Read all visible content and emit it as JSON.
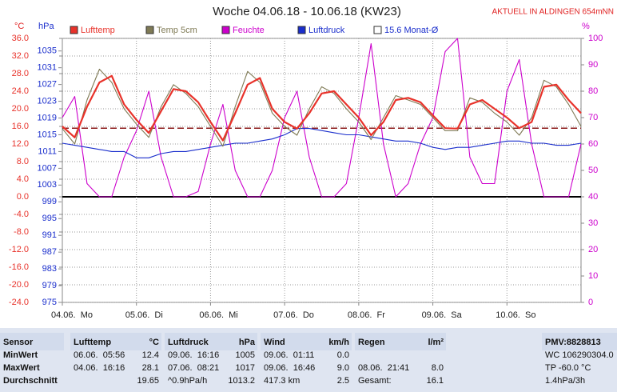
{
  "chart_data": {
    "type": "line",
    "title": "Woche 04.06.18 - 10.06.18 (KW23)",
    "subtitle": "AKTUELL IN ALDINGEN 654mNN",
    "ylabel": "°C",
    "y3label": "hPa",
    "y2label": "%",
    "legend": "top",
    "grid": true,
    "x": [
      0,
      4,
      8,
      12,
      16,
      20,
      24,
      28,
      32,
      36,
      40,
      44,
      48,
      52,
      56,
      60,
      64,
      68,
      72,
      76,
      80,
      84,
      88,
      92,
      96,
      100,
      104,
      108,
      112,
      116,
      120,
      124,
      128,
      132,
      136,
      140,
      144,
      148,
      152,
      156,
      160,
      164,
      168
    ],
    "xlim": [
      0,
      168
    ],
    "xticks": [
      {
        "value": 0,
        "label": "04.06.  Mo"
      },
      {
        "value": 24,
        "label": "05.06.  Di"
      },
      {
        "value": 48,
        "label": "06.06.  Mi"
      },
      {
        "value": 72,
        "label": "07.06.  Do"
      },
      {
        "value": 96,
        "label": "08.06.  Fr"
      },
      {
        "value": 120,
        "label": "09.06.  Sa"
      },
      {
        "value": 144,
        "label": "10.06.  So"
      }
    ],
    "ylim": [
      -24,
      36
    ],
    "yticks": [
      {
        "value": 36,
        "label": "36.0"
      },
      {
        "value": 32,
        "label": "32.0"
      },
      {
        "value": 28,
        "label": "28.0"
      },
      {
        "value": 24,
        "label": "24.0"
      },
      {
        "value": 20,
        "label": "20.0"
      },
      {
        "value": 16,
        "label": "16.0"
      },
      {
        "value": 12,
        "label": "12.0"
      },
      {
        "value": 8,
        "label": "8.0"
      },
      {
        "value": 4,
        "label": "4.0"
      },
      {
        "value": 0,
        "label": "0.0"
      },
      {
        "value": -4,
        "label": "-4.0"
      },
      {
        "value": -8,
        "label": "-8.0"
      },
      {
        "value": -12,
        "label": "-12.0"
      },
      {
        "value": -16,
        "label": "-16.0"
      },
      {
        "value": -20,
        "label": "-20.0"
      },
      {
        "value": -24,
        "label": "-24.0"
      }
    ],
    "y3lim": [
      975,
      1038
    ],
    "y3ticks": [
      1035,
      1031,
      1027,
      1023,
      1019,
      1015,
      1011,
      1007,
      1003,
      999,
      995,
      991,
      987,
      983,
      979,
      975
    ],
    "y2lim": [
      0,
      100
    ],
    "y2ticks": [
      100,
      90,
      80,
      70,
      60,
      50,
      40,
      30,
      20,
      10,
      0
    ],
    "series": [
      {
        "name": "Lufttemp",
        "color": "#e8322a",
        "axis": "y",
        "values": [
          16.0,
          13.5,
          20.5,
          26.0,
          27.5,
          21.0,
          17.5,
          14.5,
          19.5,
          24.5,
          24.0,
          21.5,
          17.0,
          12.8,
          19.0,
          25.5,
          27.0,
          20.0,
          17.0,
          15.5,
          19.0,
          23.5,
          24.0,
          21.0,
          18.0,
          14.0,
          17.0,
          22.0,
          22.5,
          21.5,
          18.5,
          15.6,
          15.5,
          21.0,
          22.0,
          20.0,
          18.0,
          15.6,
          17.0,
          25.0,
          25.5,
          22.0,
          19.0
        ]
      },
      {
        "name": "Temp 5cm",
        "color": "#7f7a55",
        "axis": "y",
        "values": [
          15.5,
          12.0,
          22.0,
          29.0,
          26.0,
          20.0,
          16.5,
          13.5,
          20.5,
          25.5,
          23.5,
          20.5,
          16.0,
          11.5,
          20.5,
          28.5,
          26.0,
          19.0,
          16.0,
          14.0,
          20.0,
          25.0,
          23.5,
          20.0,
          17.0,
          13.0,
          18.0,
          23.0,
          22.0,
          21.0,
          18.0,
          15.0,
          15.0,
          22.5,
          21.5,
          19.0,
          17.0,
          14.0,
          18.0,
          26.5,
          25.0,
          21.0,
          16.0
        ]
      },
      {
        "name": "Feuchte",
        "color": "#cc00cc",
        "axis": "y2",
        "values": [
          70,
          78,
          45,
          40,
          40,
          55,
          65,
          80,
          55,
          40,
          40,
          42,
          60,
          75,
          50,
          40,
          40,
          50,
          70,
          80,
          55,
          40,
          40,
          45,
          70,
          98,
          60,
          40,
          45,
          60,
          70,
          95,
          100,
          55,
          45,
          45,
          80,
          92,
          60,
          40,
          40,
          40,
          60
        ]
      },
      {
        "name": "Luftdruck",
        "color": "#1a2ecc",
        "axis": "y3",
        "values": [
          1013,
          1012.5,
          1012,
          1011.5,
          1011,
          1011,
          1009.5,
          1009.5,
          1010.5,
          1011,
          1011,
          1011.5,
          1012,
          1012.5,
          1013,
          1013,
          1013.5,
          1014,
          1015,
          1016.5,
          1016.5,
          1016,
          1015.5,
          1015,
          1015,
          1014.5,
          1014,
          1013.5,
          1013.5,
          1013,
          1012,
          1011.5,
          1012,
          1012,
          1012.5,
          1013,
          1013.5,
          1013.5,
          1013,
          1013,
          1012.5,
          1012.5,
          1013
        ]
      }
    ],
    "reference_line": {
      "name": "15.6 Monat-Ø",
      "value": 15.6,
      "color": "#8b1a1a",
      "axis": "y"
    }
  },
  "table": {
    "columns": [
      {
        "header": "Sensor",
        "rows": [
          {
            "left": "MinWert"
          },
          {
            "left": "MaxWert"
          },
          {
            "left": "Durchschnitt"
          }
        ]
      },
      {
        "header": "Lufttemp",
        "unit": "°C",
        "rows": [
          {
            "left": "06.06.  05:56",
            "value": "12.4"
          },
          {
            "left": "04.06.  16:16",
            "value": "28.1"
          },
          {
            "value": "19.65"
          }
        ]
      },
      {
        "header": "Luftdruck",
        "unit": "hPa",
        "rows": [
          {
            "left": "09.06.  16:16",
            "value": "1005"
          },
          {
            "left": "07.06.  08:21",
            "value": "1017"
          },
          {
            "left": "^0.9hPa/h",
            "value": "1013.2"
          }
        ]
      },
      {
        "header": "Wind",
        "unit": "km/h",
        "rows": [
          {
            "left": "09.06.  01:11",
            "value": "0.0"
          },
          {
            "left": "09.06.  16:46",
            "value": "9.0"
          },
          {
            "left": "417.3 km",
            "value": "2.5"
          }
        ]
      },
      {
        "header": "Regen",
        "unit": "l/m²",
        "rows": [
          null,
          {
            "left": "08.06.  21:41",
            "value": "8.0"
          },
          {
            "left": "Gesamt:",
            "value": "16.1"
          }
        ]
      },
      {
        "header": "PMV:8828813",
        "rows": [
          {
            "left": "WC 106290304.0"
          },
          {
            "left": "TP -60.0 °C"
          },
          {
            "left": "1.4hPa/3h"
          }
        ]
      }
    ]
  }
}
